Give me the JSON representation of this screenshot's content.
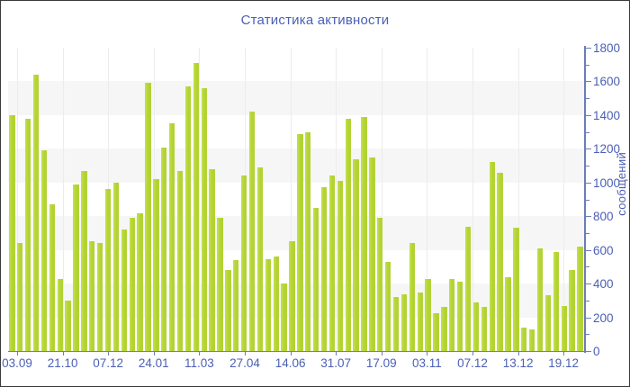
{
  "window": {
    "title": "Статистика активности"
  },
  "colors": {
    "bar": "#b3d334",
    "bar_light": "#c4e14e",
    "axis": "#6b7cb8",
    "text": "#4a5fb5",
    "band": "#f6f6f6",
    "vgrid": "#ececec",
    "frame_border": "#3a3a3a",
    "background": "#ffffff"
  },
  "chart_data": {
    "type": "bar",
    "title": "Статистика активности",
    "xlabel": "",
    "ylabel": "сообщений",
    "ylim": [
      0,
      1800
    ],
    "y_tick_step": 200,
    "y_minor_tick_step": 100,
    "y_tick_labels": [
      0,
      200,
      400,
      600,
      800,
      1000,
      1200,
      1400,
      1600,
      1800
    ],
    "grid": "alternating horizontal bands + faint vertical lines at x ticks",
    "bands": [
      [
        200,
        400
      ],
      [
        600,
        800
      ],
      [
        1000,
        1200
      ],
      [
        1400,
        1600
      ]
    ],
    "legend_position": "none",
    "x_tick_labels": [
      "03.09",
      "21.10",
      "07.12",
      "24.01",
      "11.03",
      "27.04",
      "14.06",
      "31.07",
      "17.09",
      "03.11",
      "07.12",
      "13.12",
      "19.12"
    ],
    "values": [
      1400,
      640,
      1380,
      1640,
      1190,
      870,
      430,
      300,
      990,
      1070,
      650,
      640,
      960,
      1000,
      720,
      790,
      820,
      1590,
      1020,
      1210,
      1350,
      1070,
      1570,
      1710,
      1560,
      1080,
      790,
      480,
      540,
      1040,
      1420,
      1090,
      545,
      560,
      400,
      650,
      1290,
      1300,
      850,
      970,
      1040,
      1010,
      1380,
      1140,
      1390,
      1150,
      790,
      530,
      320,
      335,
      640,
      350,
      430,
      225,
      260,
      430,
      410,
      740,
      290,
      260,
      1120,
      1060,
      440,
      730,
      140,
      130,
      610,
      330,
      590,
      270,
      480,
      620
    ]
  }
}
